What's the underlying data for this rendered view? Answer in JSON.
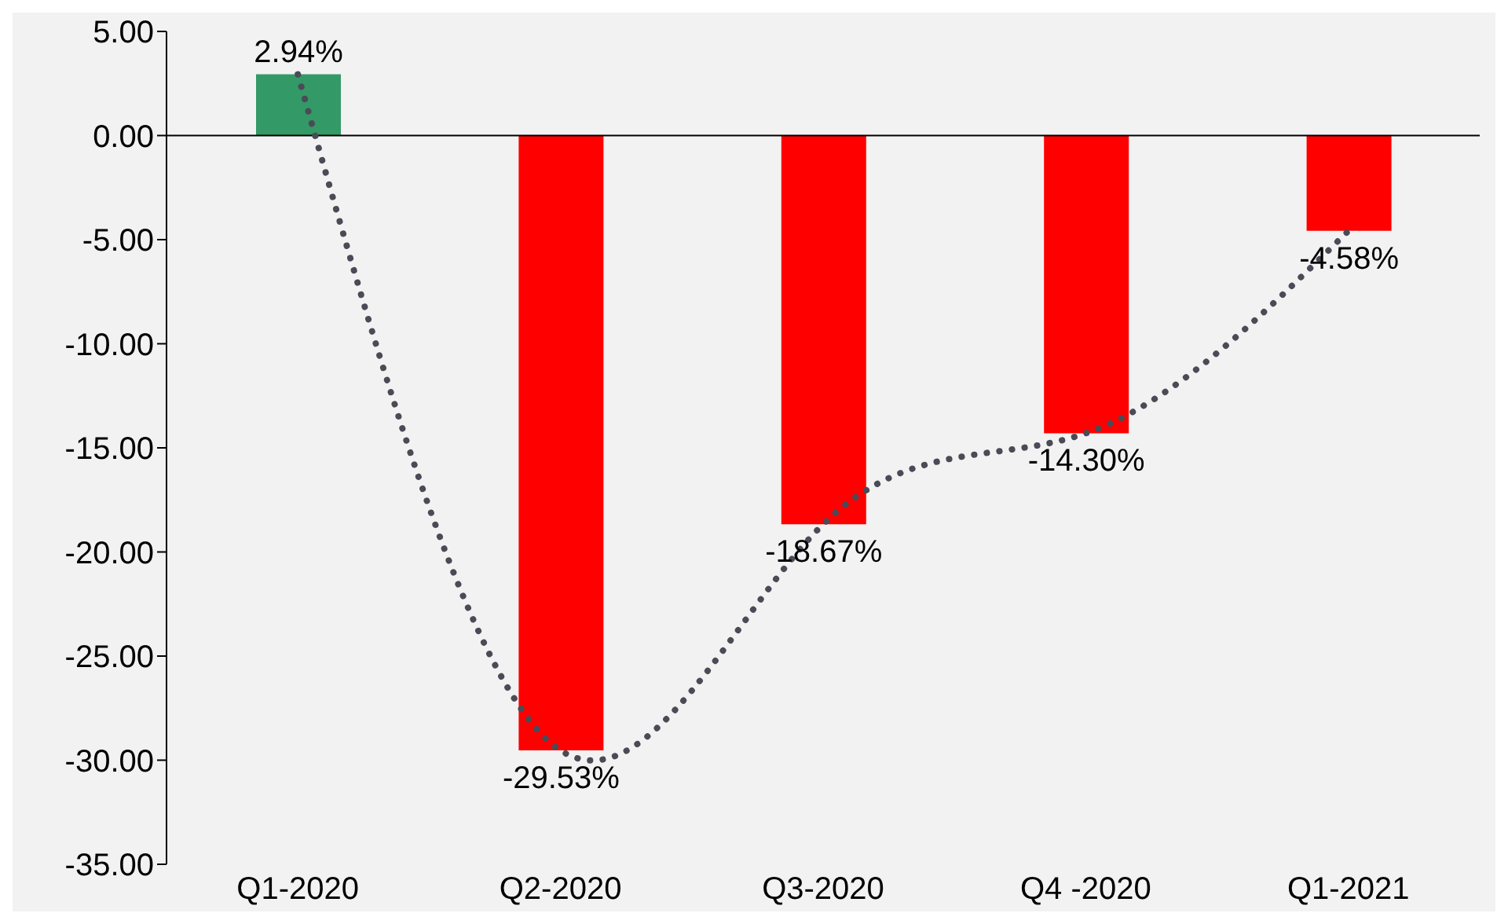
{
  "chart_data": {
    "type": "bar",
    "categories": [
      "Q1-2020",
      "Q2-2020",
      "Q3-2020",
      "Q4 -2020",
      "Q1-2021"
    ],
    "series": [
      {
        "values": [
          2.94,
          -29.53,
          -18.67,
          -14.3,
          -4.58
        ],
        "colors": [
          "#339966",
          "#ff0000",
          "#ff0000",
          "#ff0000",
          "#ff0000"
        ],
        "value_labels": [
          "2.94%",
          "-29.53%",
          "-18.67%",
          "-14.30%",
          "-4.58%"
        ]
      },
      {
        "type": "line",
        "values": [
          2.94,
          -29.53,
          -18.67,
          -14.3,
          -4.58
        ],
        "color": "#4b4b57",
        "line_style": "dotted",
        "marker": "none"
      }
    ],
    "ylim": [
      -35,
      5
    ],
    "yticks": [
      {
        "value": 5,
        "label": "5.00"
      },
      {
        "value": 0,
        "label": "0.00"
      },
      {
        "value": -5,
        "label": "-5.00"
      },
      {
        "value": -10,
        "label": "-10.00"
      },
      {
        "value": -15,
        "label": "-15.00"
      },
      {
        "value": -20,
        "label": "-20.00"
      },
      {
        "value": -25,
        "label": "-25.00"
      },
      {
        "value": -30,
        "label": "-30.00"
      },
      {
        "value": -35,
        "label": "-35.00"
      }
    ],
    "ref_lines": [
      {
        "axis": "y",
        "value": 0,
        "color": "#000000"
      }
    ],
    "grid": false,
    "legend": false
  }
}
